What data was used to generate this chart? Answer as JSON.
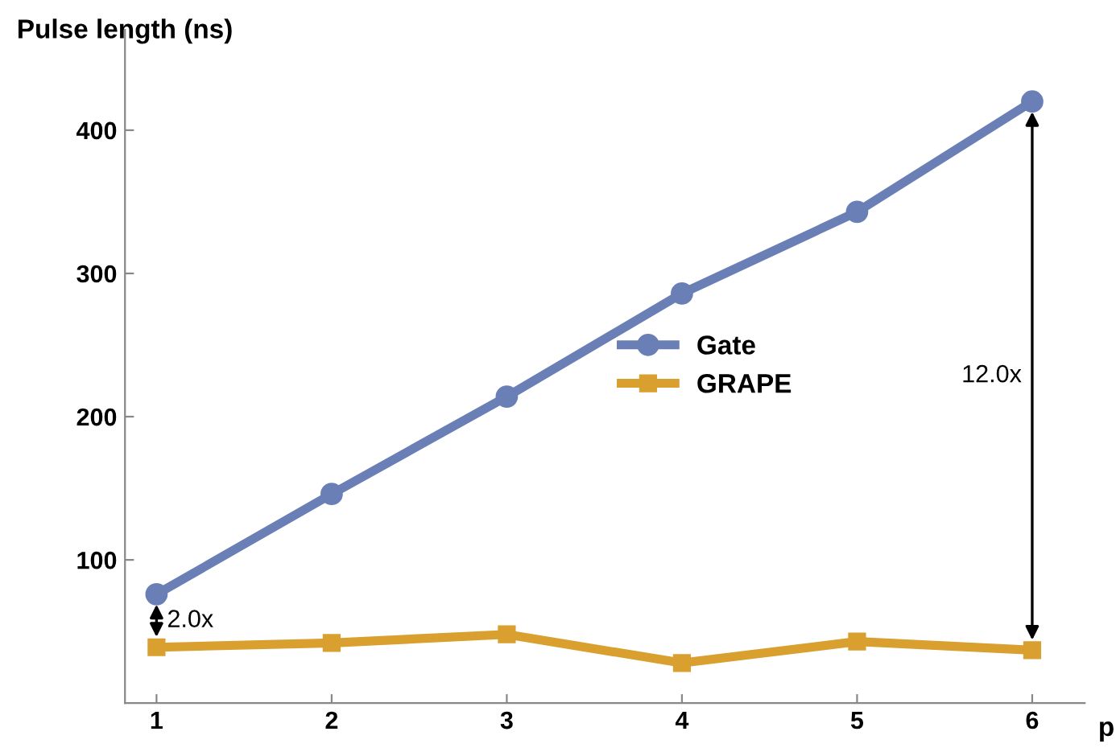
{
  "chart_data": {
    "type": "line",
    "xlabel": "p",
    "ylabel": "Pulse length (ns)",
    "x": [
      1,
      2,
      3,
      4,
      5,
      6
    ],
    "xlim": [
      0.82,
      6.3
    ],
    "ylim": [
      0,
      470
    ],
    "xticks": [
      1,
      2,
      3,
      4,
      5,
      6
    ],
    "yticks": [
      100,
      200,
      300,
      400
    ],
    "series": [
      {
        "name": "Gate",
        "color": "#6a7fb5",
        "marker": "circle",
        "values": [
          76,
          146,
          214,
          286,
          343,
          420
        ]
      },
      {
        "name": "GRAPE",
        "color": "#d9a030",
        "marker": "square",
        "values": [
          39,
          42,
          48,
          28,
          43,
          37
        ]
      }
    ],
    "annotations": [
      "2.0x",
      "12.0x"
    ],
    "legend": "right",
    "grid": false
  }
}
